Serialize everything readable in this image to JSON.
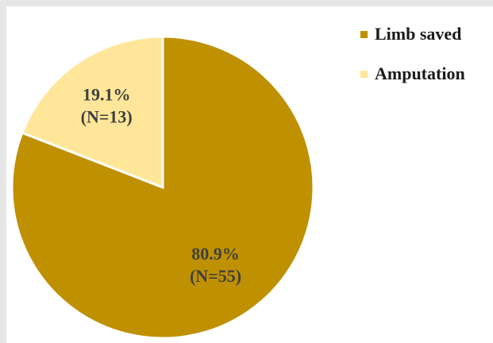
{
  "chart_data": {
    "type": "pie",
    "title": "",
    "slices": [
      {
        "name": "Limb saved",
        "percent": 80.9,
        "count_label": "(N=55)",
        "percent_label": "80.9%",
        "color": "#bf9000"
      },
      {
        "name": "Amputation",
        "percent": 19.1,
        "count_label": "(N=13)",
        "percent_label": "19.1%",
        "color": "#ffe699"
      }
    ],
    "legend": {
      "position": "top-right"
    },
    "start_angle": "12 o'clock",
    "direction": "clockwise"
  }
}
